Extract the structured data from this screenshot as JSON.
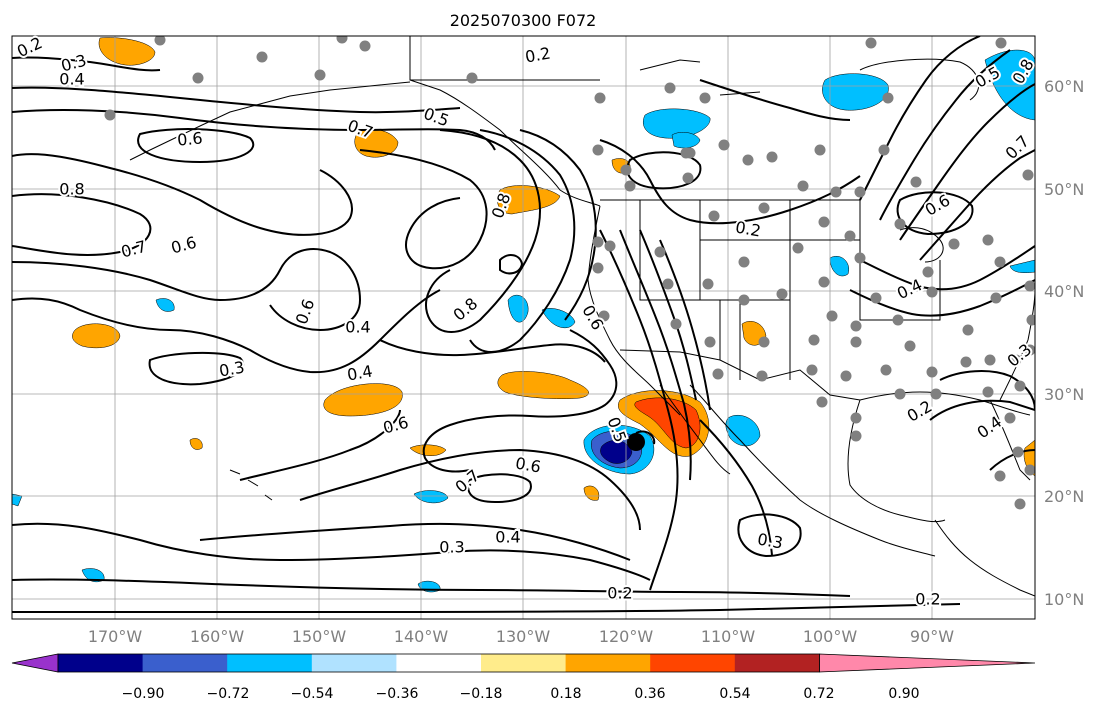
{
  "title": "2025070300 F072",
  "lon_labels": [
    "170°W",
    "160°W",
    "150°W",
    "140°W",
    "130°W",
    "120°W",
    "110°W",
    "100°W",
    "90°W"
  ],
  "lat_labels": [
    "60°N",
    "50°N",
    "40°N",
    "30°N",
    "20°N",
    "10°N"
  ],
  "colorbar": {
    "colors": [
      "#9932cc",
      "#00008b",
      "#3a5fcd",
      "#00bfff",
      "#b0e2ff",
      "#ffffff",
      "#ffec8b",
      "#ffa500",
      "#ff4500",
      "#b22222",
      "#ff88aa"
    ],
    "tick_labels": [
      "−0.90",
      "−0.72",
      "−0.54",
      "−0.36",
      "−0.18",
      "0.18",
      "0.36",
      "0.54",
      "0.72",
      "0.90"
    ]
  },
  "contour_labels": [
    "0.2",
    "0.3",
    "0.4",
    "0.5",
    "0.6",
    "0.7",
    "0.8"
  ],
  "colors": {
    "contour": "#000000",
    "station_dot": "#808080",
    "grid": "#a0a0a0",
    "coast": "#000000",
    "axis_label": "#808080"
  },
  "contour_label_placements": [
    {
      "text": "0.2"
    },
    {
      "text": "0.3"
    },
    {
      "text": "0.4"
    },
    {
      "text": "0.2"
    },
    {
      "text": "0.6"
    },
    {
      "text": "0.5"
    },
    {
      "text": "0.7"
    },
    {
      "text": "0.8"
    },
    {
      "text": "0.7"
    },
    {
      "text": "0.6"
    },
    {
      "text": "0.8"
    },
    {
      "text": "0.6"
    },
    {
      "text": "0.4"
    },
    {
      "text": "0.8"
    },
    {
      "text": "0.6"
    },
    {
      "text": "0.3"
    },
    {
      "text": "0.4"
    },
    {
      "text": "0.6"
    },
    {
      "text": "0.6"
    },
    {
      "text": "0.7"
    },
    {
      "text": "0.3"
    },
    {
      "text": "0.4"
    },
    {
      "text": "0.2"
    },
    {
      "text": "0.3"
    },
    {
      "text": "0.2"
    },
    {
      "text": "0.2"
    },
    {
      "text": "0.5"
    },
    {
      "text": "0.8"
    },
    {
      "text": "0.7"
    },
    {
      "text": "0.6"
    },
    {
      "text": "0.4"
    },
    {
      "text": "0.2"
    },
    {
      "text": "0.4"
    },
    {
      "text": "0.3"
    },
    {
      "text": "0.5"
    }
  ]
}
